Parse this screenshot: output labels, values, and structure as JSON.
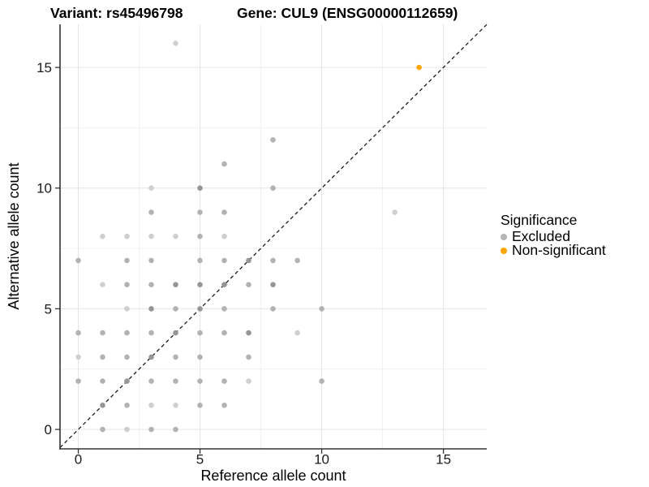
{
  "chart_data": {
    "type": "scatter",
    "title_left": "Variant: rs45496798",
    "title_right": "Gene: CUL9 (ENSG00000112659)",
    "xlabel": "Reference allele count",
    "ylabel": "Alternative allele count",
    "xlim": [
      -0.75,
      16.78
    ],
    "ylim": [
      -0.805,
      16.785
    ],
    "xticks": [
      0,
      5,
      10,
      15
    ],
    "yticks": [
      0,
      5,
      10,
      15
    ],
    "xticks_minor": [
      2.5,
      7.5,
      12.5
    ],
    "yticks_minor": [
      2.5,
      7.5,
      12.5
    ],
    "grid": "major+minor",
    "reference_line": {
      "equation": "y = x",
      "style": "dashed",
      "color": "#1a1a1a"
    },
    "legend": {
      "title": "Significance",
      "position": "right",
      "entries": [
        {
          "label": "Excluded",
          "color": "#b5b5b5"
        },
        {
          "label": "Non-significant",
          "color": "#FFA500"
        }
      ]
    },
    "shade_colors": {
      "l": "#cfcfcf",
      "m": "#b2b2b2",
      "d": "#959595"
    },
    "series": [
      {
        "name": "Excluded",
        "color": "#b5b5b5",
        "points": [
          [
            1,
            0,
            "m"
          ],
          [
            2,
            0,
            "l"
          ],
          [
            3,
            0,
            "m"
          ],
          [
            4,
            0,
            "m"
          ],
          [
            1,
            1,
            "d"
          ],
          [
            2,
            1,
            "m"
          ],
          [
            3,
            1,
            "l"
          ],
          [
            4,
            1,
            "l"
          ],
          [
            5,
            1,
            "m"
          ],
          [
            6,
            1,
            "m"
          ],
          [
            0,
            2,
            "m"
          ],
          [
            1,
            2,
            "m"
          ],
          [
            2,
            2,
            "d"
          ],
          [
            3,
            2,
            "m"
          ],
          [
            4,
            2,
            "m"
          ],
          [
            5,
            2,
            "m"
          ],
          [
            6,
            2,
            "m"
          ],
          [
            7,
            2,
            "l"
          ],
          [
            10,
            2,
            "m"
          ],
          [
            0,
            3,
            "l"
          ],
          [
            1,
            3,
            "m"
          ],
          [
            2,
            3,
            "m"
          ],
          [
            3,
            3,
            "d"
          ],
          [
            4,
            3,
            "m"
          ],
          [
            5,
            3,
            "m"
          ],
          [
            7,
            3,
            "m"
          ],
          [
            0,
            4,
            "m"
          ],
          [
            1,
            4,
            "m"
          ],
          [
            2,
            4,
            "m"
          ],
          [
            3,
            4,
            "m"
          ],
          [
            4,
            4,
            "d"
          ],
          [
            5,
            4,
            "m"
          ],
          [
            6,
            4,
            "m"
          ],
          [
            7,
            4,
            "d"
          ],
          [
            9,
            4,
            "l"
          ],
          [
            2,
            5,
            "l"
          ],
          [
            3,
            5,
            "d"
          ],
          [
            4,
            5,
            "m"
          ],
          [
            5,
            5,
            "d"
          ],
          [
            6,
            5,
            "m"
          ],
          [
            8,
            5,
            "m"
          ],
          [
            10,
            5,
            "m"
          ],
          [
            1,
            6,
            "l"
          ],
          [
            2,
            6,
            "m"
          ],
          [
            3,
            6,
            "m"
          ],
          [
            4,
            6,
            "d"
          ],
          [
            5,
            6,
            "d"
          ],
          [
            6,
            6,
            "d"
          ],
          [
            7,
            6,
            "m"
          ],
          [
            8,
            6,
            "d"
          ],
          [
            0,
            7,
            "m"
          ],
          [
            2,
            7,
            "m"
          ],
          [
            3,
            7,
            "m"
          ],
          [
            5,
            7,
            "m"
          ],
          [
            6,
            7,
            "m"
          ],
          [
            7,
            7,
            "d"
          ],
          [
            8,
            7,
            "m"
          ],
          [
            9,
            7,
            "m"
          ],
          [
            1,
            8,
            "l"
          ],
          [
            2,
            8,
            "l"
          ],
          [
            3,
            8,
            "l"
          ],
          [
            4,
            8,
            "l"
          ],
          [
            5,
            8,
            "m"
          ],
          [
            6,
            8,
            "l"
          ],
          [
            3,
            9,
            "m"
          ],
          [
            5,
            9,
            "m"
          ],
          [
            6,
            9,
            "m"
          ],
          [
            13,
            9,
            "l"
          ],
          [
            3,
            10,
            "l"
          ],
          [
            5,
            10,
            "d"
          ],
          [
            8,
            10,
            "m"
          ],
          [
            6,
            11,
            "m"
          ],
          [
            8,
            12,
            "m"
          ],
          [
            4,
            16,
            "l"
          ]
        ]
      },
      {
        "name": "Non-significant",
        "color": "#FFA500",
        "points": [
          [
            14,
            15
          ]
        ]
      }
    ]
  }
}
